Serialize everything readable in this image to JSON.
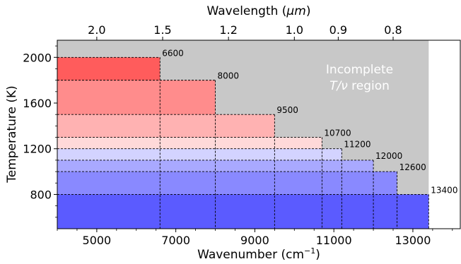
{
  "chart_data": {
    "type": "bar",
    "title": "",
    "xlabel": "Wavenumber (cm",
    "xlabel_sup": "−1",
    "xlabel_end": ")",
    "ylabel": "Temperature (K)",
    "top_xlabel": "Wavelength (",
    "top_xlabel_unit": "μm",
    "top_xlabel_end": ")",
    "xlim": [
      4000,
      14200
    ],
    "ylim": [
      500,
      2150
    ],
    "x_ticks": [
      5000,
      7000,
      9000,
      11000,
      13000
    ],
    "x_tick_labels": [
      "5000",
      "7000",
      "9000",
      "11000",
      "13000"
    ],
    "y_ticks": [
      800,
      1200,
      1600,
      2000
    ],
    "y_tick_labels": [
      "800",
      "1200",
      "1600",
      "2000"
    ],
    "top_ticks_um": [
      2.0,
      1.5,
      1.2,
      1.0,
      0.9,
      0.8
    ],
    "top_tick_labels": [
      "2.0",
      "1.5",
      "1.2",
      "1.0",
      "0.9",
      "0.8"
    ],
    "incomplete_region": {
      "x_max": 13400,
      "color": "#c8c8c8",
      "label_line1": "Incomplete",
      "label_line2_italic": "T/ν",
      "label_line2_rest": " region"
    },
    "bands": [
      {
        "t_low": 500,
        "t_high": 800,
        "x_max": 13400,
        "color": "#5b5bff"
      },
      {
        "t_low": 800,
        "t_high": 1000,
        "x_max": 12600,
        "color": "#8989ff"
      },
      {
        "t_low": 1000,
        "t_high": 1100,
        "x_max": 12000,
        "color": "#a9a9ff"
      },
      {
        "t_low": 1100,
        "t_high": 1200,
        "x_max": 11200,
        "color": "#d3d3ff"
      },
      {
        "t_low": 1200,
        "t_high": 1300,
        "x_max": 10700,
        "color": "#ffd9d9"
      },
      {
        "t_low": 1300,
        "t_high": 1500,
        "x_max": 9500,
        "color": "#ffb2b2"
      },
      {
        "t_low": 1500,
        "t_high": 1800,
        "x_max": 8000,
        "color": "#ff8c8c"
      },
      {
        "t_low": 1800,
        "t_high": 2000,
        "x_max": 6600,
        "color": "#ff5c5c"
      }
    ],
    "corner_labels": [
      {
        "x": 6600,
        "t": 2000,
        "text": "6600"
      },
      {
        "x": 8000,
        "t": 1800,
        "text": "8000"
      },
      {
        "x": 9500,
        "t": 1500,
        "text": "9500"
      },
      {
        "x": 10700,
        "t": 1300,
        "text": "10700"
      },
      {
        "x": 11200,
        "t": 1200,
        "text": "11200"
      },
      {
        "x": 12000,
        "t": 1100,
        "text": "12000"
      },
      {
        "x": 12600,
        "t": 1000,
        "text": "12600"
      },
      {
        "x": 13400,
        "t": 800,
        "text": "13400"
      }
    ],
    "grid": false,
    "legend": "none"
  }
}
